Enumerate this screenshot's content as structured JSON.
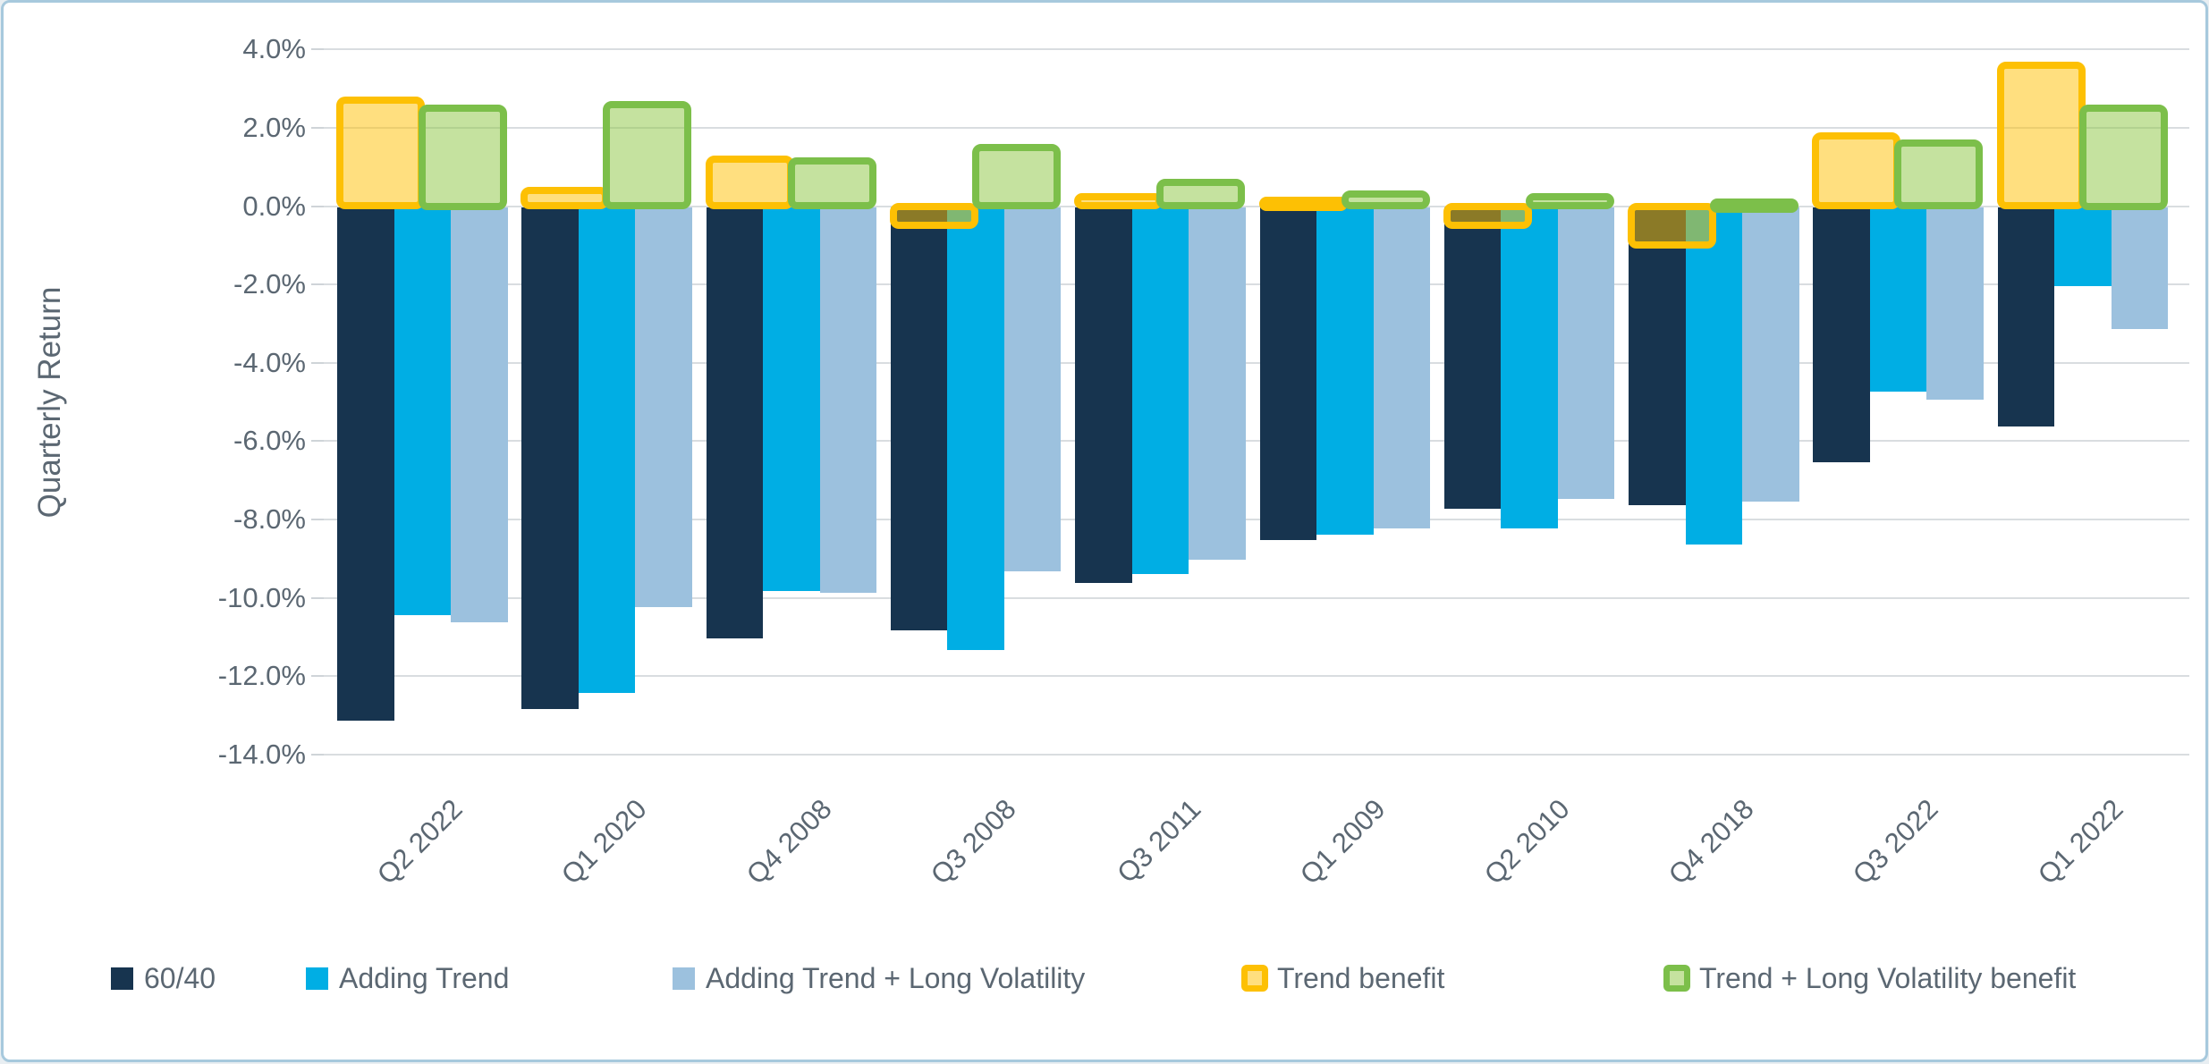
{
  "chart_data": {
    "type": "bar",
    "title": "",
    "xlabel": "",
    "ylabel": "Quarterly Return",
    "categories": [
      "Q2 2022",
      "Q1 2020",
      "Q4 2008",
      "Q3 2008",
      "Q3 2011",
      "Q1 2009",
      "Q2 2010",
      "Q4 2018",
      "Q3 2022",
      "Q1 2022"
    ],
    "series": [
      {
        "name": "60/40",
        "style": "solid",
        "color": "#17344f",
        "values": [
          -13.1,
          -12.8,
          -11.0,
          -10.8,
          -9.6,
          -8.5,
          -7.7,
          -7.6,
          -6.5,
          -5.6
        ]
      },
      {
        "name": "Adding Trend",
        "style": "solid",
        "color": "#00aee4",
        "values": [
          -10.4,
          -12.4,
          -9.8,
          -11.3,
          -9.35,
          -8.35,
          -8.2,
          -8.6,
          -4.7,
          -2.0
        ]
      },
      {
        "name": "Adding Trend + Long Volatility",
        "style": "solid",
        "color": "#9cc1de",
        "values": [
          -10.6,
          -10.2,
          -9.85,
          -9.3,
          -9.0,
          -8.2,
          -7.45,
          -7.5,
          -4.9,
          -3.1
        ]
      },
      {
        "name": "Trend benefit",
        "style": "outlined",
        "border_color": "#fdc004",
        "fill_color": "rgba(255,192,0,0.5)",
        "values": [
          2.7,
          0.4,
          1.2,
          -0.5,
          0.25,
          0.15,
          -0.5,
          -1.0,
          1.8,
          3.6
        ]
      },
      {
        "name": "Trend + Long Volatility benefit",
        "style": "outlined",
        "border_color": "#7cbf4a",
        "fill_color": "rgba(140,198,63,0.5)",
        "values": [
          2.5,
          2.6,
          1.15,
          1.5,
          0.6,
          0.3,
          0.25,
          0.1,
          1.6,
          2.5
        ]
      }
    ],
    "y_axis": {
      "min": -14,
      "max": 4,
      "tick_step": 2,
      "tick_labels": [
        "4.0%",
        "2.0%",
        "0.0%",
        "-2.0%",
        "-4.0%",
        "-6.0%",
        "-8.0%",
        "-10.0%",
        "-12.0%",
        "-14.0%"
      ],
      "tick_values": [
        4,
        2,
        0,
        -2,
        -4,
        -6,
        -8,
        -10,
        -12,
        -14
      ]
    },
    "grid": true,
    "legend_position": "bottom",
    "colors": {
      "gridline": "#d9dde0",
      "axis_text": "#5b6772",
      "frame_border": "#a7c9dd",
      "background": "#ffffff"
    }
  }
}
